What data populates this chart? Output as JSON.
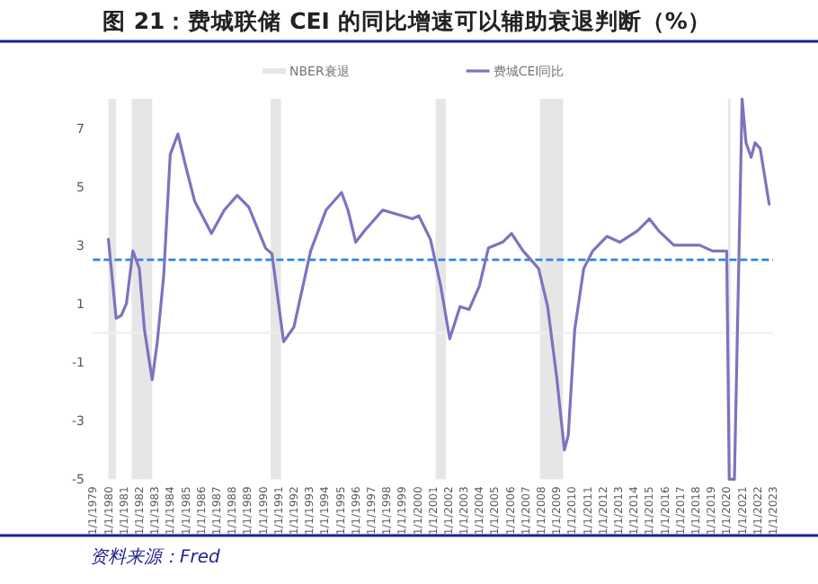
{
  "chart_data": {
    "type": "line",
    "title": "图 21：费城联储 CEI 的同比增速可以辅助衰退判断（%）",
    "annotations": [
      "资料来源：Fred"
    ],
    "series": [
      {
        "name": "费城CEI同比",
        "color": "#7b74c0",
        "x": [
          "1980-01",
          "1980-07",
          "1980-11",
          "1981-03",
          "1981-08",
          "1982-01",
          "1982-05",
          "1982-11",
          "1983-03",
          "1983-08",
          "1984-01",
          "1984-07",
          "1985-01",
          "1985-08",
          "1986-09",
          "1987-07",
          "1988-05",
          "1989-02",
          "1990-03",
          "1990-08",
          "1991-05",
          "1992-01",
          "1993-02",
          "1994-02",
          "1995-02",
          "1995-07",
          "1996-01",
          "1996-08",
          "1997-10",
          "1999-09",
          "2000-02",
          "2000-11",
          "2001-07",
          "2002-02",
          "2002-10",
          "2003-05",
          "2004-01",
          "2004-08",
          "2005-07",
          "2006-02",
          "2006-11",
          "2007-11",
          "2008-06",
          "2009-01",
          "2009-07",
          "2009-10",
          "2010-03",
          "2010-10",
          "2011-05",
          "2012-04",
          "2013-02",
          "2014-04",
          "2015-01",
          "2015-08",
          "2016-08",
          "2018-04",
          "2019-02",
          "2020-01",
          "2020-03",
          "2020-07",
          "2021-01",
          "2021-04",
          "2021-08",
          "2021-11",
          "2022-03",
          "2022-10"
        ],
        "values": [
          3.2,
          0.5,
          0.6,
          1.0,
          2.8,
          2.2,
          0.1,
          -1.6,
          -0.3,
          2.0,
          6.1,
          6.8,
          5.7,
          4.5,
          3.4,
          4.2,
          4.7,
          4.3,
          2.9,
          2.7,
          -0.3,
          0.2,
          2.8,
          4.2,
          4.8,
          4.2,
          3.1,
          3.5,
          4.2,
          3.9,
          4.0,
          3.2,
          1.6,
          -0.2,
          0.9,
          0.8,
          1.6,
          2.9,
          3.1,
          3.4,
          2.8,
          2.2,
          0.9,
          -1.5,
          -4.0,
          -3.5,
          0.1,
          2.2,
          2.8,
          3.3,
          3.1,
          3.5,
          3.9,
          3.5,
          3.0,
          3.0,
          2.8,
          2.8,
          -5,
          -5,
          8,
          6.5,
          6.0,
          6.5,
          6.3,
          4.4
        ]
      }
    ],
    "bands": [
      {
        "axis": "x",
        "from": "1980-01",
        "to": "1980-07",
        "label": "NBER衰退",
        "color": "#e6e6e6"
      },
      {
        "axis": "x",
        "from": "1981-07",
        "to": "1982-11",
        "color": "#e6e6e6"
      },
      {
        "axis": "x",
        "from": "1990-07",
        "to": "1991-03",
        "color": "#e6e6e6"
      },
      {
        "axis": "x",
        "from": "2001-03",
        "to": "2001-11",
        "color": "#e6e6e6"
      },
      {
        "axis": "x",
        "from": "2007-12",
        "to": "2009-06",
        "color": "#e6e6e6"
      },
      {
        "axis": "x",
        "from": "2020-02",
        "to": "2020-04",
        "color": "#e6e6e6"
      }
    ],
    "ref_lines": [
      {
        "axis": "y",
        "value": 0,
        "color": "#eeeeee"
      },
      {
        "axis": "y",
        "value": 2.5,
        "color": "#2e86de",
        "line_style": "dashed"
      }
    ],
    "xlim": [
      "1979-01",
      "2023-01"
    ],
    "xticks": [
      {
        "value": "1979-01",
        "label": "1/1/1979"
      },
      {
        "value": "1980-01",
        "label": "1/1/1980"
      },
      {
        "value": "1981-01",
        "label": "1/1/1981"
      },
      {
        "value": "1982-01",
        "label": "1/1/1982"
      },
      {
        "value": "1983-01",
        "label": "1/1/1983"
      },
      {
        "value": "1984-01",
        "label": "1/1/1984"
      },
      {
        "value": "1985-01",
        "label": "1/1/1985"
      },
      {
        "value": "1986-01",
        "label": "1/1/1986"
      },
      {
        "value": "1987-01",
        "label": "1/1/1987"
      },
      {
        "value": "1988-01",
        "label": "1/1/1988"
      },
      {
        "value": "1989-01",
        "label": "1/1/1989"
      },
      {
        "value": "1990-01",
        "label": "1/1/1990"
      },
      {
        "value": "1991-01",
        "label": "1/1/1991"
      },
      {
        "value": "1992-01",
        "label": "1/1/1992"
      },
      {
        "value": "1993-01",
        "label": "1/1/1993"
      },
      {
        "value": "1994-01",
        "label": "1/1/1994"
      },
      {
        "value": "1995-01",
        "label": "1/1/1995"
      },
      {
        "value": "1996-01",
        "label": "1/1/1996"
      },
      {
        "value": "1997-01",
        "label": "1/1/1997"
      },
      {
        "value": "1998-01",
        "label": "1/1/1998"
      },
      {
        "value": "1999-01",
        "label": "1/1/1999"
      },
      {
        "value": "2000-01",
        "label": "1/1/2000"
      },
      {
        "value": "2001-01",
        "label": "1/1/2001"
      },
      {
        "value": "2002-01",
        "label": "1/1/2002"
      },
      {
        "value": "2003-01",
        "label": "1/1/2003"
      },
      {
        "value": "2004-01",
        "label": "1/1/2004"
      },
      {
        "value": "2005-01",
        "label": "1/1/2005"
      },
      {
        "value": "2006-01",
        "label": "1/1/2006"
      },
      {
        "value": "2007-01",
        "label": "1/1/2007"
      },
      {
        "value": "2008-01",
        "label": "1/1/2008"
      },
      {
        "value": "2009-01",
        "label": "1/1/2009"
      },
      {
        "value": "2010-01",
        "label": "1/1/2010"
      },
      {
        "value": "2011-01",
        "label": "1/1/2011"
      },
      {
        "value": "2012-01",
        "label": "1/1/2012"
      },
      {
        "value": "2013-01",
        "label": "1/1/2013"
      },
      {
        "value": "2014-01",
        "label": "1/1/2014"
      },
      {
        "value": "2015-01",
        "label": "1/1/2015"
      },
      {
        "value": "2016-01",
        "label": "1/1/2016"
      },
      {
        "value": "2017-01",
        "label": "1/1/2017"
      },
      {
        "value": "2018-01",
        "label": "1/1/2018"
      },
      {
        "value": "2019-01",
        "label": "1/1/2019"
      },
      {
        "value": "2020-01",
        "label": "1/1/2020"
      },
      {
        "value": "2021-01",
        "label": "1/1/2021"
      },
      {
        "value": "2022-01",
        "label": "1/1/2022"
      },
      {
        "value": "2023-01",
        "label": "1/1/2023"
      }
    ],
    "ylim": [
      -5,
      8
    ],
    "yticks": [
      -5,
      -3,
      -1,
      1,
      3,
      5,
      7
    ],
    "legend": "top",
    "grid": false
  }
}
